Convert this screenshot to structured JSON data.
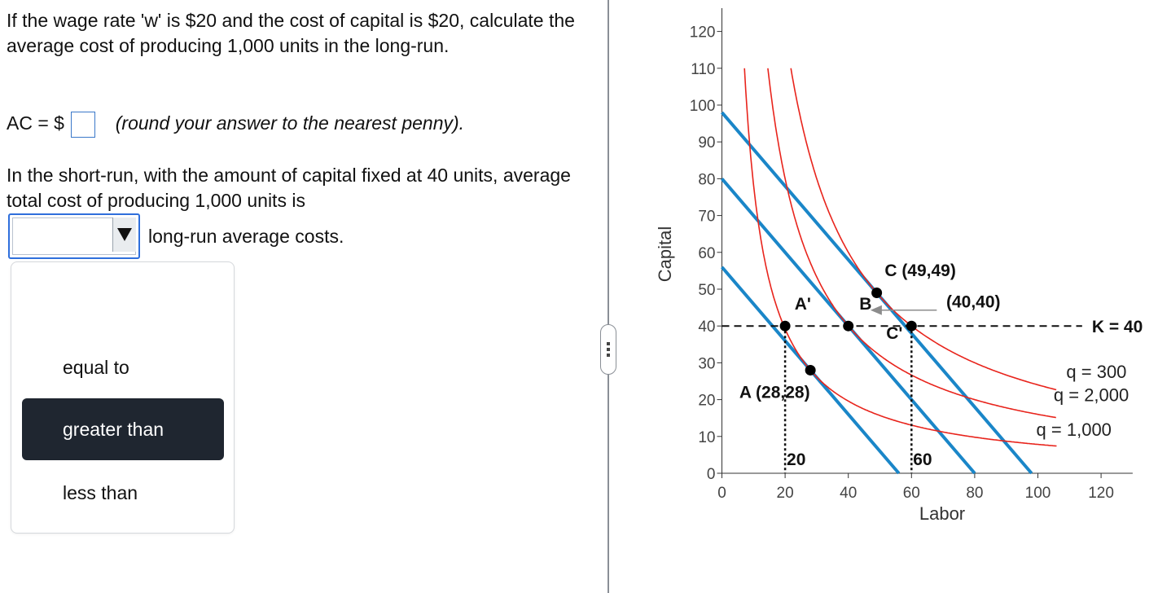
{
  "question": {
    "part1": "If the wage rate 'w' is $20 and the cost of capital is $20, calculate the average cost of producing 1,000 units in the long-run.",
    "ac_label": "AC = $",
    "ac_value": "",
    "ac_hint": "(round your answer to the nearest penny).",
    "part2": "In the short-run, with the amount of capital fixed at 40 units, average total cost of producing 1,000 units is",
    "select_value": "",
    "after_select": "long-run average costs."
  },
  "dropdown": {
    "options": [
      "equal to",
      "greater than",
      "less than"
    ],
    "highlighted": "greater than"
  },
  "chart_data": {
    "type": "line",
    "xlabel": "Labor",
    "ylabel": "Capital",
    "xlim": [
      0,
      130
    ],
    "ylim": [
      0,
      125
    ],
    "x_ticks": [
      "0",
      "20",
      "40",
      "60",
      "80",
      "100",
      "120"
    ],
    "y_ticks": [
      "0",
      "10",
      "20",
      "30",
      "40",
      "50",
      "60",
      "70",
      "80",
      "90",
      "100",
      "110",
      "120"
    ],
    "isoquants": [
      {
        "label": "q  =  1,000",
        "k": 784
      },
      {
        "label": "q  =  2,000",
        "k": 1600
      },
      {
        "label": "q  =  300",
        "k": 2401
      }
    ],
    "isocosts": [
      {
        "intercept": 56
      },
      {
        "intercept": 80
      },
      {
        "intercept": 98
      }
    ],
    "k_fixed": {
      "label": "K = 40",
      "value": 40
    },
    "points": [
      {
        "name": "A' point",
        "x": 20,
        "y": 40
      },
      {
        "name": "A point",
        "x": 28,
        "y": 28
      },
      {
        "name": "B point",
        "x": 40,
        "y": 40
      },
      {
        "name": "C point",
        "x": 49,
        "y": 49
      },
      {
        "name": "C' point",
        "x": 60,
        "y": 40
      }
    ],
    "labels": {
      "a_prime": "A'",
      "a": "A (28,28)",
      "b": "B",
      "c": "C (49,49)",
      "c_prime": "C'",
      "forty": "(40,40)",
      "l20": "20",
      "l60": "60"
    },
    "colors": {
      "isoquant": "#e8241c",
      "isocost": "#1a86c8",
      "arrow": "#8c8c8c",
      "point": "#000000"
    }
  }
}
